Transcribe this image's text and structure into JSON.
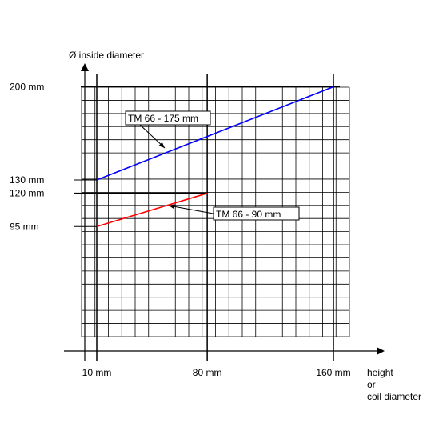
{
  "chart_data": {
    "type": "line",
    "ylabel": "Ø inside diameter",
    "xlabel_lines": [
      "height",
      "or",
      "coil diameter"
    ],
    "x_ticks": [
      {
        "value": 10,
        "label": "10 mm"
      },
      {
        "value": 80,
        "label": "80 mm"
      },
      {
        "value": 160,
        "label": "160 mm"
      }
    ],
    "y_ticks": [
      {
        "value": 200,
        "label": "200 mm"
      },
      {
        "value": 130,
        "label": "130 mm"
      },
      {
        "value": 120,
        "label": "120 mm"
      },
      {
        "value": 95,
        "label": "95 mm"
      }
    ],
    "series": [
      {
        "name": "TM 66 - 175 mm",
        "color": "#0000ff",
        "points": [
          [
            10,
            130
          ],
          [
            160,
            200
          ]
        ]
      },
      {
        "name": "TM 66 - 90 mm",
        "color": "#ff0000",
        "points": [
          [
            10,
            95
          ],
          [
            80,
            120
          ]
        ]
      }
    ],
    "grid": true
  }
}
